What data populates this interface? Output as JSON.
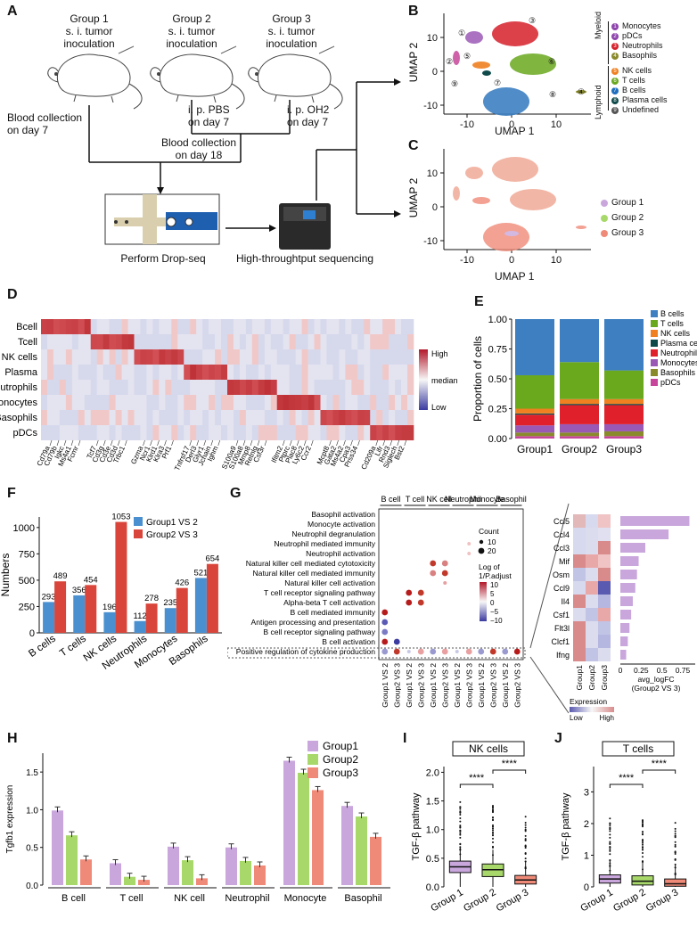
{
  "panels": {
    "A": "A",
    "B": "B",
    "C": "C",
    "D": "D",
    "E": "E",
    "F": "F",
    "G": "G",
    "H": "H",
    "I": "I",
    "J": "J"
  },
  "panel_a": {
    "groups": [
      {
        "title": "Group 1",
        "line2": "s. i. tumor",
        "line3": "inoculation"
      },
      {
        "title": "Group 2",
        "line2": "s. i. tumor",
        "line3": "inoculation"
      },
      {
        "title": "Group 3",
        "line2": "s. i. tumor",
        "line3": "inoculation"
      }
    ],
    "blood_day7": "Blood collection\non day 7",
    "pbs": "i. p. PBS\non day 7",
    "oh2": "i. p. OH2\non day 7",
    "blood_day18": "Blood collection\non day 18",
    "dropseq": "Perform Drop-seq",
    "sequencing": "High-throughtput sequencing"
  },
  "panel_b": {
    "xlabel": "UMAP 1",
    "ylabel": "UMAP 2",
    "xticks": [
      "-10",
      "0",
      "10"
    ],
    "yticks": [
      "10",
      "0",
      "-10"
    ],
    "cluster_ids": [
      "①",
      "②",
      "③",
      "④",
      "⑤",
      "⑥",
      "⑦",
      "⑧",
      "⑨"
    ],
    "myeloid_label": "Myeloid",
    "lymphoid_label": "Lymphoid",
    "legend": [
      {
        "num": "1",
        "name": "Monocytes",
        "color": "#8e44ad"
      },
      {
        "num": "2",
        "name": "pDCs",
        "color": "#8e44ad"
      },
      {
        "num": "3",
        "name": "Neutrophils",
        "color": "#d6202a"
      },
      {
        "num": "4",
        "name": "Basophils",
        "color": "#8a8a2a"
      },
      {
        "num": "5",
        "name": "NK cells",
        "color": "#f08020"
      },
      {
        "num": "6",
        "name": "T cells",
        "color": "#6aa81e"
      },
      {
        "num": "7",
        "name": "B cells",
        "color": "#1e6fbf"
      },
      {
        "num": "8",
        "name": "Plasma cells",
        "color": "#0f4a4a"
      },
      {
        "num": "9",
        "name": "Undefined",
        "color": "#555555"
      }
    ]
  },
  "panel_c": {
    "xlabel": "UMAP 1",
    "ylabel": "UMAP 2",
    "xticks": [
      "-10",
      "0",
      "10"
    ],
    "yticks": [
      "10",
      "0",
      "-10"
    ],
    "legend": [
      {
        "name": "Group 1",
        "color": "#c9a7dc"
      },
      {
        "name": "Group 2",
        "color": "#a8d86a"
      },
      {
        "name": "Group 3",
        "color": "#f08a78"
      }
    ]
  },
  "panel_d": {
    "rows": [
      "Bcell",
      "Tcell",
      "NK cells",
      "Plasma",
      "Neutrophils",
      "Monocytes",
      "Basophils",
      "pDCs"
    ],
    "legend_high": "High",
    "legend_median": "median",
    "legend_low": "Low",
    "gene_groups": [
      [
        "Cd79a",
        "Cd79b",
        "Igkc",
        "Ms4a1",
        "Fcmr"
      ],
      [
        "Tcf7",
        "Cd3g",
        "Cd3e",
        "Cd3d",
        "Trbc1"
      ],
      [
        "Gzma",
        "Ncr1",
        "Klrd1",
        "Klra3",
        "Prf1"
      ],
      [
        "Tnfrsf17",
        "Derl3",
        "Glyr1",
        "Jchain",
        "Ighm"
      ],
      [
        "S100a9",
        "S100a8",
        "Mmp8",
        "Retnlg",
        "Csf3r"
      ],
      [
        "Ifitm2",
        "Ptprc",
        "Plac8",
        "Ly6c2",
        "Ccr2"
      ],
      [
        "Mcpt8",
        "Gata2",
        "Ms4a2",
        "Cpa3",
        "Prss34"
      ],
      [
        "Cd209a",
        "Lifr",
        "Rnd3",
        "Siglech",
        "Bst2"
      ]
    ]
  },
  "panel_e": {
    "ylabel": "Proportion of cells",
    "yticks": [
      "1.00",
      "0.75",
      "0.50",
      "0.25",
      "0.00"
    ],
    "chart_data": {
      "type": "bar",
      "stacked": true,
      "categories": [
        "Group1",
        "Group2",
        "Group3"
      ],
      "series": [
        {
          "name": "pDCs",
          "color": "#c7459a",
          "values": [
            0.02,
            0.02,
            0.02
          ]
        },
        {
          "name": "Basophils",
          "color": "#8a8a2a",
          "values": [
            0.03,
            0.03,
            0.04
          ]
        },
        {
          "name": "Monocytes",
          "color": "#9b59b6",
          "values": [
            0.06,
            0.07,
            0.06
          ]
        },
        {
          "name": "Neutrophils",
          "color": "#e0202a",
          "values": [
            0.09,
            0.16,
            0.16
          ]
        },
        {
          "name": "Plasma cells",
          "color": "#0f4a4a",
          "values": [
            0.01,
            0.01,
            0.01
          ]
        },
        {
          "name": "NK cells",
          "color": "#f08020",
          "values": [
            0.04,
            0.04,
            0.04
          ]
        },
        {
          "name": "T cells",
          "color": "#6aa81e",
          "values": [
            0.28,
            0.31,
            0.24
          ]
        },
        {
          "name": "B cells",
          "color": "#3d7fc1",
          "values": [
            0.47,
            0.36,
            0.43
          ]
        }
      ],
      "ylim": [
        0,
        1
      ],
      "ylabel": "Proportion of cells"
    }
  },
  "panel_f": {
    "chart_data": {
      "type": "bar",
      "categories": [
        "B cells",
        "T cells",
        "NK cells",
        "Neutrophils",
        "Monocytes",
        "Basophils"
      ],
      "series": [
        {
          "name": "Group1 VS 2",
          "color": "#4a90d0",
          "values": [
            293,
            356,
            196,
            112,
            235,
            521
          ]
        },
        {
          "name": "Group2 VS 3",
          "color": "#d9453a",
          "values": [
            489,
            454,
            1053,
            278,
            426,
            654
          ]
        }
      ],
      "ylabel": "Numbers",
      "ylim": [
        0,
        1100
      ],
      "yticks": [
        "0",
        "250",
        "500",
        "750",
        "1000"
      ]
    }
  },
  "panel_g": {
    "terms": [
      "Basophil activation",
      "Monocyte activation",
      "Neutrophil degranulation",
      "Neutrophil mediated immunity",
      "Neutrophil activation",
      "Natural killer cell mediated cytotoxicity",
      "Natural killer cell mediated immunity",
      "Natural killer cell activation",
      "T cell receptor signaling pathway",
      "Alpha-beta T cell activation",
      "B cell mediated immunity",
      "Antigen processing and presentation",
      "B cell receptor signaling pathway",
      "B cell activation",
      "Positive regulation of cytokine production"
    ],
    "cell_types": [
      "B cell",
      "T cell",
      "NK cell",
      "Neutrophil",
      "Monocyte",
      "Basophil"
    ],
    "comparisons": [
      "Group1 VS 2",
      "Group2 VS 3"
    ],
    "count_label": "Count",
    "count_values": [
      "10",
      "20"
    ],
    "log_label": "Log of\n1/P.adjust",
    "log_ticks": [
      "10",
      "5",
      "0",
      "−5",
      "−10"
    ],
    "genes": [
      "Ccl5",
      "Ccl4",
      "Ccl3",
      "Mif",
      "Osm",
      "Ccl9",
      "Il4",
      "Csf1",
      "Flt3l",
      "Clcf1",
      "Ifng"
    ],
    "heat_cols": [
      "Group1",
      "Group2",
      "Group3"
    ],
    "expression_label": "Expression",
    "expr_low": "Low",
    "expr_high": "High",
    "logfc_label": "avg_logFC\n(Group2 VS 3)",
    "logfc_ticks": [
      "0",
      "0.25",
      "0.5",
      "0.75"
    ],
    "logfc_values": [
      0.83,
      0.58,
      0.3,
      0.22,
      0.2,
      0.18,
      0.15,
      0.13,
      0.11,
      0.09,
      0.07
    ]
  },
  "panel_h": {
    "chart_data": {
      "type": "bar",
      "categories": [
        "B cell",
        "T cell",
        "NK cell",
        "Neutrophil",
        "Monocyte",
        "Basophil"
      ],
      "series": [
        {
          "name": "Group1",
          "color": "#c9a7dc",
          "values": [
            0.99,
            0.29,
            0.51,
            0.5,
            1.65,
            1.05
          ]
        },
        {
          "name": "Group2",
          "color": "#a8d86a",
          "values": [
            0.66,
            0.11,
            0.33,
            0.32,
            1.49,
            0.91
          ]
        },
        {
          "name": "Group3",
          "color": "#f08a78",
          "values": [
            0.34,
            0.07,
            0.09,
            0.26,
            1.26,
            0.64
          ]
        }
      ],
      "ylabel": "Tgfb1 expression",
      "ylim": [
        0,
        1.75
      ],
      "yticks": [
        "0.0",
        "0.5",
        "1.0",
        "1.5"
      ]
    }
  },
  "panel_i": {
    "title": "NK cells",
    "ylabel": "TGF-β pathway",
    "sig": "****",
    "xticks": [
      "Group 1",
      "Group 2",
      "Group 3"
    ],
    "yticks": [
      "0.0",
      "0.5",
      "1.0",
      "1.5",
      "2.0"
    ],
    "chart_data": {
      "type": "box",
      "categories": [
        "Group 1",
        "Group 2",
        "Group 3"
      ],
      "medians": [
        0.35,
        0.3,
        0.12
      ],
      "q1": [
        0.25,
        0.18,
        0.05
      ],
      "q3": [
        0.45,
        0.4,
        0.2
      ],
      "ylim": [
        0,
        2.1
      ]
    }
  },
  "panel_j": {
    "title": "T cells",
    "ylabel": "TGF-β pathway",
    "sig": "****",
    "xticks": [
      "Group 1",
      "Group 2",
      "Group 3"
    ],
    "yticks": [
      "0",
      "1",
      "2",
      "3"
    ],
    "chart_data": {
      "type": "box",
      "categories": [
        "Group 1",
        "Group 2",
        "Group 3"
      ],
      "medians": [
        0.25,
        0.18,
        0.1
      ],
      "q1": [
        0.12,
        0.06,
        0.02
      ],
      "q3": [
        0.38,
        0.35,
        0.25
      ],
      "ylim": [
        0,
        3.8
      ]
    }
  }
}
